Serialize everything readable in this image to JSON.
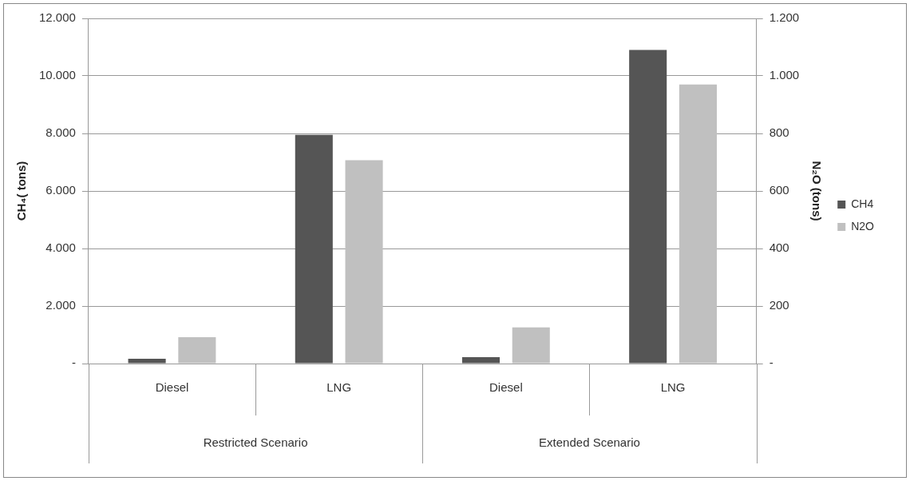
{
  "chart_data": {
    "type": "bar",
    "categories": [
      "Diesel",
      "LNG",
      "Diesel",
      "LNG"
    ],
    "series": [
      {
        "name": "CH4",
        "color": "#555555",
        "values": [
          170,
          7950,
          220,
          10900
        ]
      },
      {
        "name": "N2O",
        "color": "#c0c0c0",
        "values": [
          92,
          707,
          126,
          970
        ],
        "axis": "y2"
      }
    ],
    "ylabel": "CH₄( tons)",
    "y2label": "N₂O (tons)",
    "ylim": [
      0,
      12000
    ],
    "yticks": [
      {
        "value": 0,
        "label": "-"
      },
      {
        "value": 2000,
        "label": "2.000"
      },
      {
        "value": 4000,
        "label": "4.000"
      },
      {
        "value": 6000,
        "label": "6.000"
      },
      {
        "value": 8000,
        "label": "8.000"
      },
      {
        "value": 10000,
        "label": "10.000"
      },
      {
        "value": 12000,
        "label": "12.000"
      }
    ],
    "y2lim": [
      0,
      1200
    ],
    "y2ticks": [
      {
        "value": 0,
        "label": "-"
      },
      200,
      400,
      600,
      800,
      {
        "value": 1000,
        "label": "1.000"
      },
      {
        "value": 1200,
        "label": "1.200"
      }
    ],
    "annotations": [
      "Restricted Scenario",
      "Extended Scenario"
    ],
    "grid": "y",
    "legend": "right"
  }
}
